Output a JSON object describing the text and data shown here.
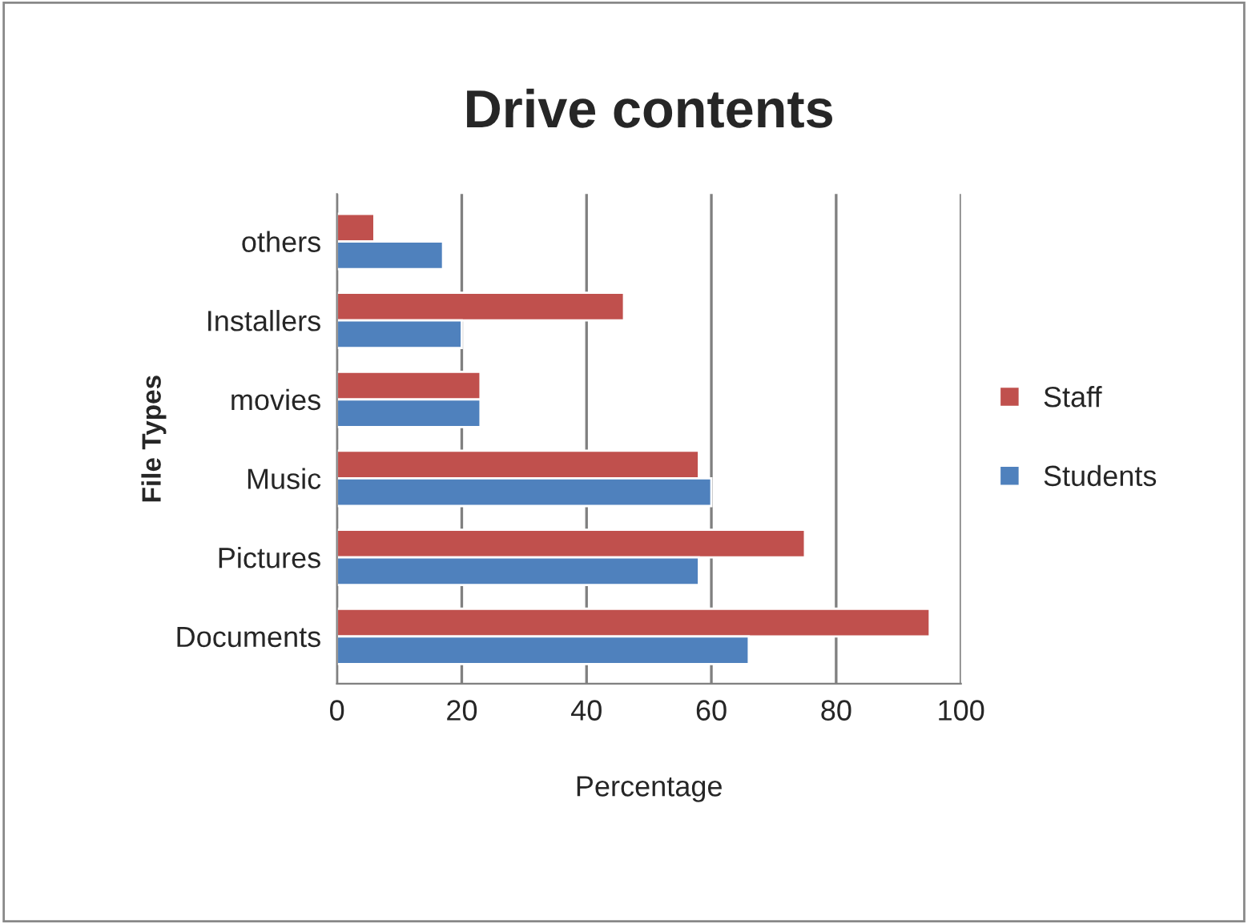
{
  "chart_data": {
    "type": "bar",
    "orientation": "horizontal",
    "title": "Drive contents",
    "xlabel": "Percentage",
    "ylabel": "File Types",
    "categories": [
      "others",
      "Installers",
      "movies",
      "Music",
      "Pictures",
      "Documents"
    ],
    "series": [
      {
        "name": "Staff",
        "color": "#c0504d",
        "values": [
          6,
          46,
          23,
          58,
          75,
          95
        ]
      },
      {
        "name": "Students",
        "color": "#4f81bd",
        "values": [
          17,
          20,
          23,
          60,
          58,
          66
        ]
      }
    ],
    "xlim": [
      0,
      100
    ],
    "xticks": [
      0,
      20,
      40,
      60,
      80,
      100
    ],
    "grid": "x",
    "legend": "right"
  }
}
